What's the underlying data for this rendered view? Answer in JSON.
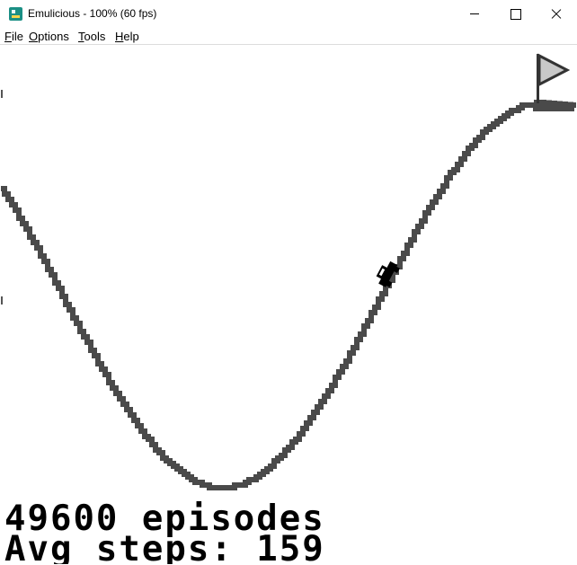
{
  "window": {
    "title": "Emulicious - 100% (60 fps)",
    "icon": "emulicious-app-icon",
    "controls": [
      "minimize",
      "maximize",
      "close"
    ]
  },
  "menu": {
    "items": [
      {
        "label_mnemonic": "F",
        "label_rest": "ile"
      },
      {
        "label_mnemonic": "O",
        "label_rest": "ptions"
      },
      {
        "label_mnemonic": "T",
        "label_rest": "ools"
      },
      {
        "label_mnemonic": "H",
        "label_rest": "elp"
      }
    ]
  },
  "game": {
    "episodes_text": "49600 episodes",
    "steps_text": "Avg steps: 159",
    "car_position": 0.72,
    "colors": {
      "track": "#4a4a4a",
      "car": "#000000",
      "flag": "#c8c8c8",
      "background": "#ffffff"
    }
  }
}
